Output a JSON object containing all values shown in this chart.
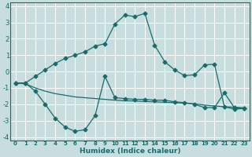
{
  "title": "",
  "xlabel": "Humidex (Indice chaleur)",
  "ylabel": "",
  "bg_color": "#c8dede",
  "grid_color": "#ffffff",
  "line_color": "#1a6b6b",
  "xlim": [
    -0.5,
    23.5
  ],
  "ylim": [
    -4.2,
    4.2
  ],
  "xticks": [
    0,
    1,
    2,
    3,
    4,
    5,
    6,
    7,
    8,
    9,
    10,
    11,
    12,
    13,
    14,
    15,
    16,
    17,
    18,
    19,
    20,
    21,
    22,
    23
  ],
  "yticks": [
    -4,
    -3,
    -2,
    -1,
    0,
    1,
    2,
    3,
    4
  ],
  "line1": {
    "x": [
      0,
      1,
      2,
      3,
      4,
      5,
      6,
      7,
      8,
      9,
      10,
      11,
      12,
      13,
      14,
      15,
      16,
      17,
      18,
      19,
      20,
      21,
      22,
      23
    ],
    "y": [
      -0.7,
      -0.7,
      -0.3,
      0.1,
      0.5,
      0.8,
      1.0,
      1.2,
      1.55,
      1.7,
      2.9,
      3.45,
      3.35,
      3.55,
      1.6,
      0.6,
      0.1,
      -0.25,
      -0.2,
      0.4,
      0.45,
      -2.15,
      -2.3,
      -2.25
    ],
    "marker": "D",
    "markersize": 2.5
  },
  "line2": {
    "x": [
      0,
      1,
      2,
      3,
      4,
      5,
      6,
      7,
      8,
      9,
      10,
      11,
      12,
      13,
      14,
      15,
      16,
      17,
      18,
      19,
      20,
      21,
      22,
      23
    ],
    "y": [
      -0.7,
      -0.7,
      -1.2,
      -2.0,
      -2.85,
      -3.4,
      -3.65,
      -3.55,
      -2.7,
      -0.3,
      -1.6,
      -1.65,
      -1.7,
      -1.7,
      -1.75,
      -1.75,
      -1.85,
      -1.9,
      -2.0,
      -2.2,
      -2.2,
      -1.3,
      -2.2,
      -2.25
    ],
    "marker": "D",
    "markersize": 2.5
  },
  "line3": {
    "x": [
      0,
      1,
      2,
      3,
      4,
      5,
      6,
      7,
      8,
      9,
      10,
      11,
      12,
      13,
      14,
      15,
      16,
      17,
      18,
      19,
      20,
      21,
      22,
      23
    ],
    "y": [
      -0.7,
      -0.75,
      -1.0,
      -1.2,
      -1.35,
      -1.45,
      -1.55,
      -1.6,
      -1.65,
      -1.7,
      -1.75,
      -1.78,
      -1.8,
      -1.83,
      -1.85,
      -1.88,
      -1.9,
      -1.93,
      -1.97,
      -2.05,
      -2.1,
      -2.15,
      -2.18,
      -2.22
    ],
    "marker": null,
    "markersize": 0
  }
}
